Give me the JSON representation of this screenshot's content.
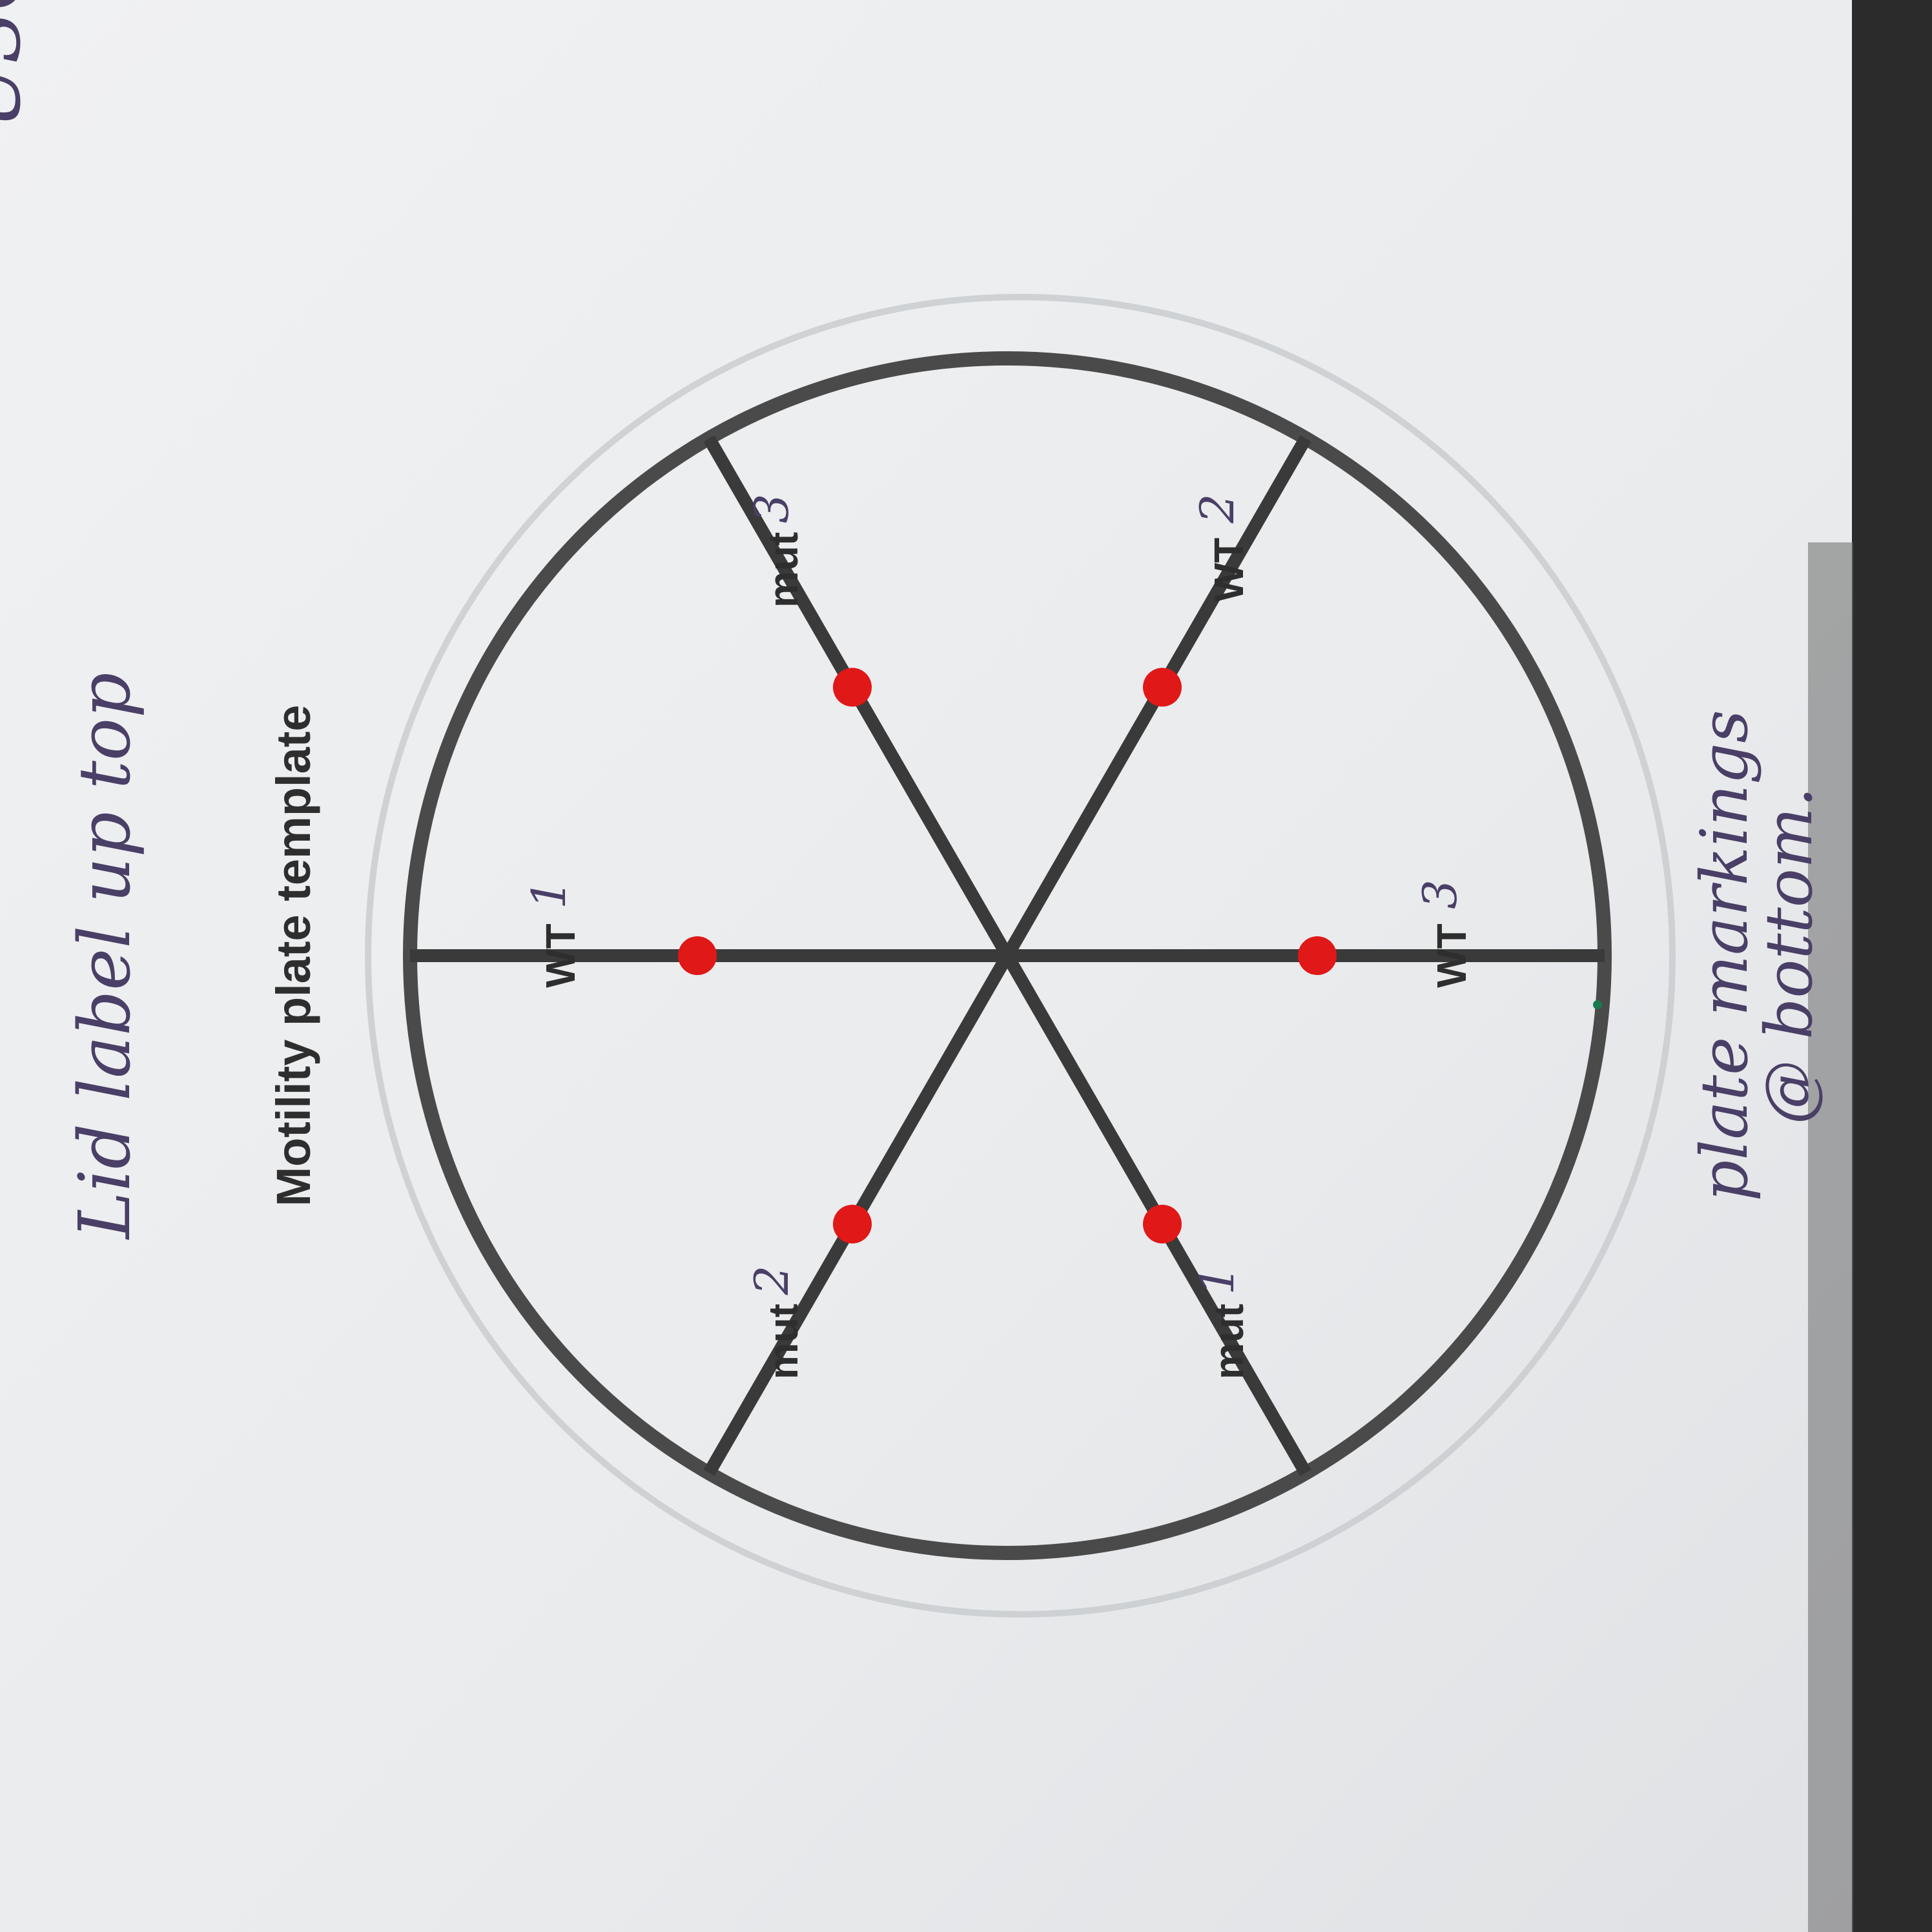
{
  "document": {
    "title": "Motility plate template",
    "colors": {
      "paper": "#eceef0",
      "frame": "#2b2b2b",
      "print_ink": "#2e2e2e",
      "marker_ink": "#4a3f66",
      "spot_red": "#e01818"
    }
  },
  "handwritten": {
    "top_note": "Lid label up top",
    "bottom_note_line1": "plate markings",
    "bottom_note_line2": "@ bottom.",
    "corner_fragment": "USO"
  },
  "plate": {
    "sectors": [
      {
        "printed": "mut",
        "handwritten": "2"
      },
      {
        "printed": "WT",
        "handwritten": "1"
      },
      {
        "printed": "mut",
        "handwritten": "3"
      },
      {
        "printed": "WT",
        "handwritten": "2"
      },
      {
        "printed": "WT",
        "handwritten": "3"
      },
      {
        "printed": "mut",
        "handwritten": "1"
      }
    ]
  }
}
